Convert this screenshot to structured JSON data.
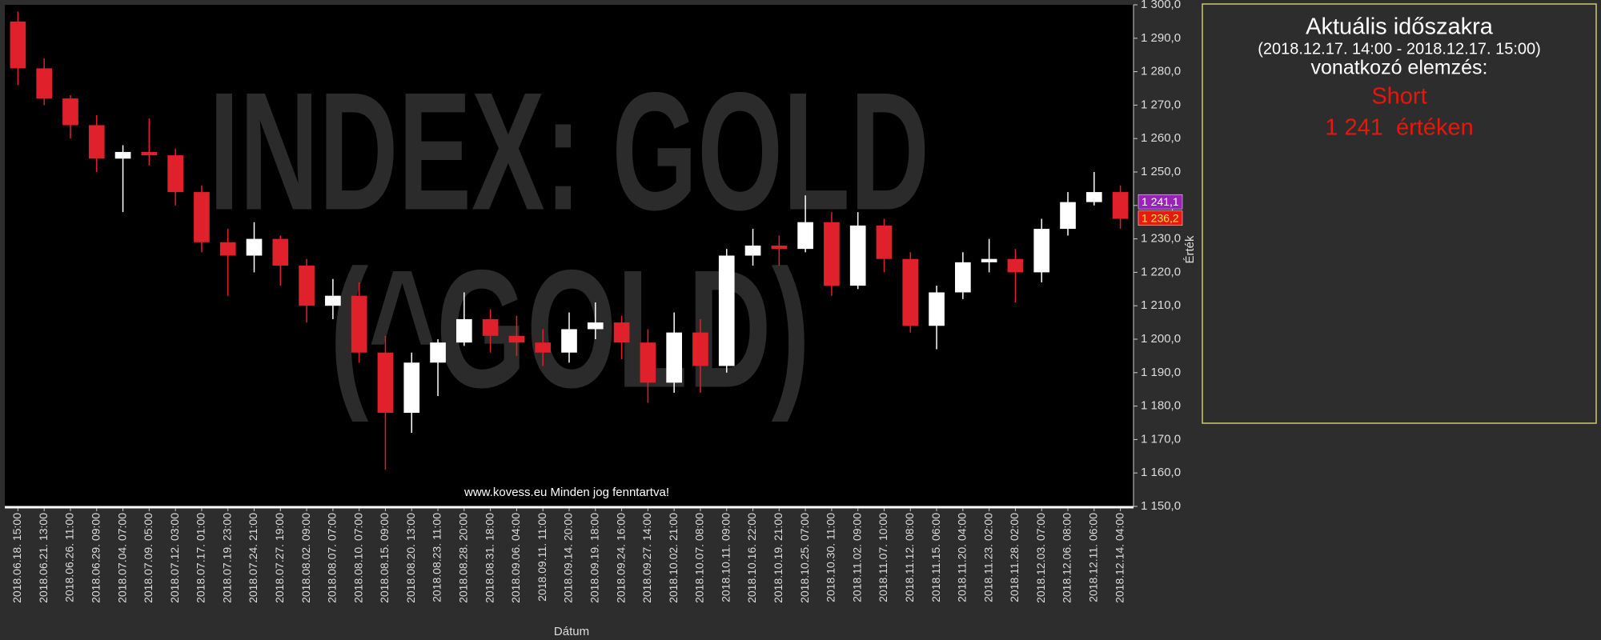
{
  "chart_data": {
    "type": "candlestick",
    "watermark": [
      "INDEX: GOLD",
      "(^GOLD)"
    ],
    "footer": "www.kovess.eu Minden jog fenntartva!",
    "xlabel": "Dátum",
    "ylabel": "Érték",
    "categories": [
      "2018.06.18. 15:00",
      "2018.06.21. 13:00",
      "2018.06.26. 11:00",
      "2018.06.29. 09:00",
      "2018.07.04. 07:00",
      "2018.07.09. 05:00",
      "2018.07.12. 03:00",
      "2018.07.17. 01:00",
      "2018.07.19. 23:00",
      "2018.07.24. 21:00",
      "2018.07.27. 19:00",
      "2018.08.02. 09:00",
      "2018.08.07. 07:00",
      "2018.08.10. 07:00",
      "2018.08.15. 09:00",
      "2018.08.20. 13:00",
      "2018.08.23. 11:00",
      "2018.08.28. 20:00",
      "2018.08.31. 18:00",
      "2018.09.06. 04:00",
      "2018.09.11. 11:00",
      "2018.09.14. 20:00",
      "2018.09.19. 18:00",
      "2018.09.24. 16:00",
      "2018.09.27. 14:00",
      "2018.10.02. 21:00",
      "2018.10.07. 08:00",
      "2018.10.11. 09:00",
      "2018.10.16. 22:00",
      "2018.10.19. 21:00",
      "2018.10.25. 07:00",
      "2018.10.30. 11:00",
      "2018.11.02. 09:00",
      "2018.11.07. 10:00",
      "2018.11.12. 08:00",
      "2018.11.15. 06:00",
      "2018.11.20. 04:00",
      "2018.11.23. 02:00",
      "2018.11.28. 02:00",
      "2018.12.03. 07:00",
      "2018.12.06. 08:00",
      "2018.12.11. 06:00",
      "2018.12.14. 04:00"
    ],
    "open": [
      1295,
      1281,
      1272,
      1264,
      1254,
      1256,
      1255,
      1244,
      1229,
      1225,
      1230,
      1222,
      1210,
      1213,
      1196,
      1178,
      1193,
      1199,
      1206,
      1201,
      1199,
      1196,
      1203,
      1205,
      1199,
      1187,
      1202,
      1192,
      1225,
      1228,
      1227,
      1235,
      1216,
      1234,
      1224,
      1204,
      1214,
      1223,
      1224,
      1220,
      1233,
      1241,
      1244
    ],
    "high": [
      1298,
      1284,
      1273,
      1267,
      1258,
      1266,
      1257,
      1246,
      1233,
      1235,
      1231,
      1224,
      1218,
      1217,
      1201,
      1196,
      1200,
      1214,
      1209,
      1207,
      1203,
      1208,
      1211,
      1207,
      1203,
      1208,
      1206,
      1227,
      1233,
      1231,
      1243,
      1238,
      1238,
      1236,
      1226,
      1216,
      1226,
      1230,
      1227,
      1236,
      1244,
      1250,
      1246
    ],
    "low": [
      1276,
      1270,
      1260,
      1250,
      1238,
      1252,
      1240,
      1226,
      1213,
      1220,
      1216,
      1205,
      1206,
      1193,
      1161,
      1172,
      1183,
      1198,
      1196,
      1195,
      1192,
      1193,
      1200,
      1194,
      1181,
      1184,
      1184,
      1190,
      1222,
      1222,
      1226,
      1213,
      1215,
      1220,
      1202,
      1197,
      1212,
      1220,
      1211,
      1217,
      1231,
      1240,
      1233
    ],
    "close": [
      1281,
      1272,
      1264,
      1254,
      1256,
      1255,
      1244,
      1229,
      1225,
      1230,
      1222,
      1210,
      1213,
      1196,
      1178,
      1193,
      1199,
      1206,
      1201,
      1199,
      1196,
      1203,
      1205,
      1199,
      1187,
      1202,
      1192,
      1225,
      1228,
      1227,
      1235,
      1216,
      1234,
      1224,
      1204,
      1214,
      1223,
      1224,
      1220,
      1233,
      1241,
      1244,
      1236
    ],
    "up_color": "#ffffff",
    "down_color": "#e0202a",
    "ylim": [
      1150,
      1300
    ],
    "yticks": [
      {
        "value": 1150,
        "label": "1 150,0"
      },
      {
        "value": 1160,
        "label": "1 160,0"
      },
      {
        "value": 1170,
        "label": "1 170,0"
      },
      {
        "value": 1180,
        "label": "1 180,0"
      },
      {
        "value": 1190,
        "label": "1 190,0"
      },
      {
        "value": 1200,
        "label": "1 200,0"
      },
      {
        "value": 1210,
        "label": "1 210,0"
      },
      {
        "value": 1220,
        "label": "1 220,0"
      },
      {
        "value": 1230,
        "label": "1 230,0"
      },
      {
        "value": 1240,
        "label": "1 240,0"
      },
      {
        "value": 1250,
        "label": "1 250,0"
      },
      {
        "value": 1260,
        "label": "1 260,0"
      },
      {
        "value": 1270,
        "label": "1 270,0"
      },
      {
        "value": 1280,
        "label": "1 280,0"
      },
      {
        "value": 1290,
        "label": "1 290,0"
      },
      {
        "value": 1300,
        "label": "1 300,0"
      }
    ],
    "grid": false,
    "price_tags": [
      {
        "value": 1241.1,
        "label": "1 241,1",
        "color": "#9a22b8",
        "text_color": "#ffffff"
      },
      {
        "value": 1236.2,
        "label": "1 236,2",
        "color": "#e8190f",
        "text_color": "#ffe84a"
      }
    ]
  },
  "panel": {
    "title": "Aktuális időszakra",
    "period": "(2018.12.17. 14:00 - 2018.12.17. 15:00)",
    "subtitle": "vonatkozó elemzés:",
    "signal": "Short",
    "level": "1 241  értéken"
  }
}
